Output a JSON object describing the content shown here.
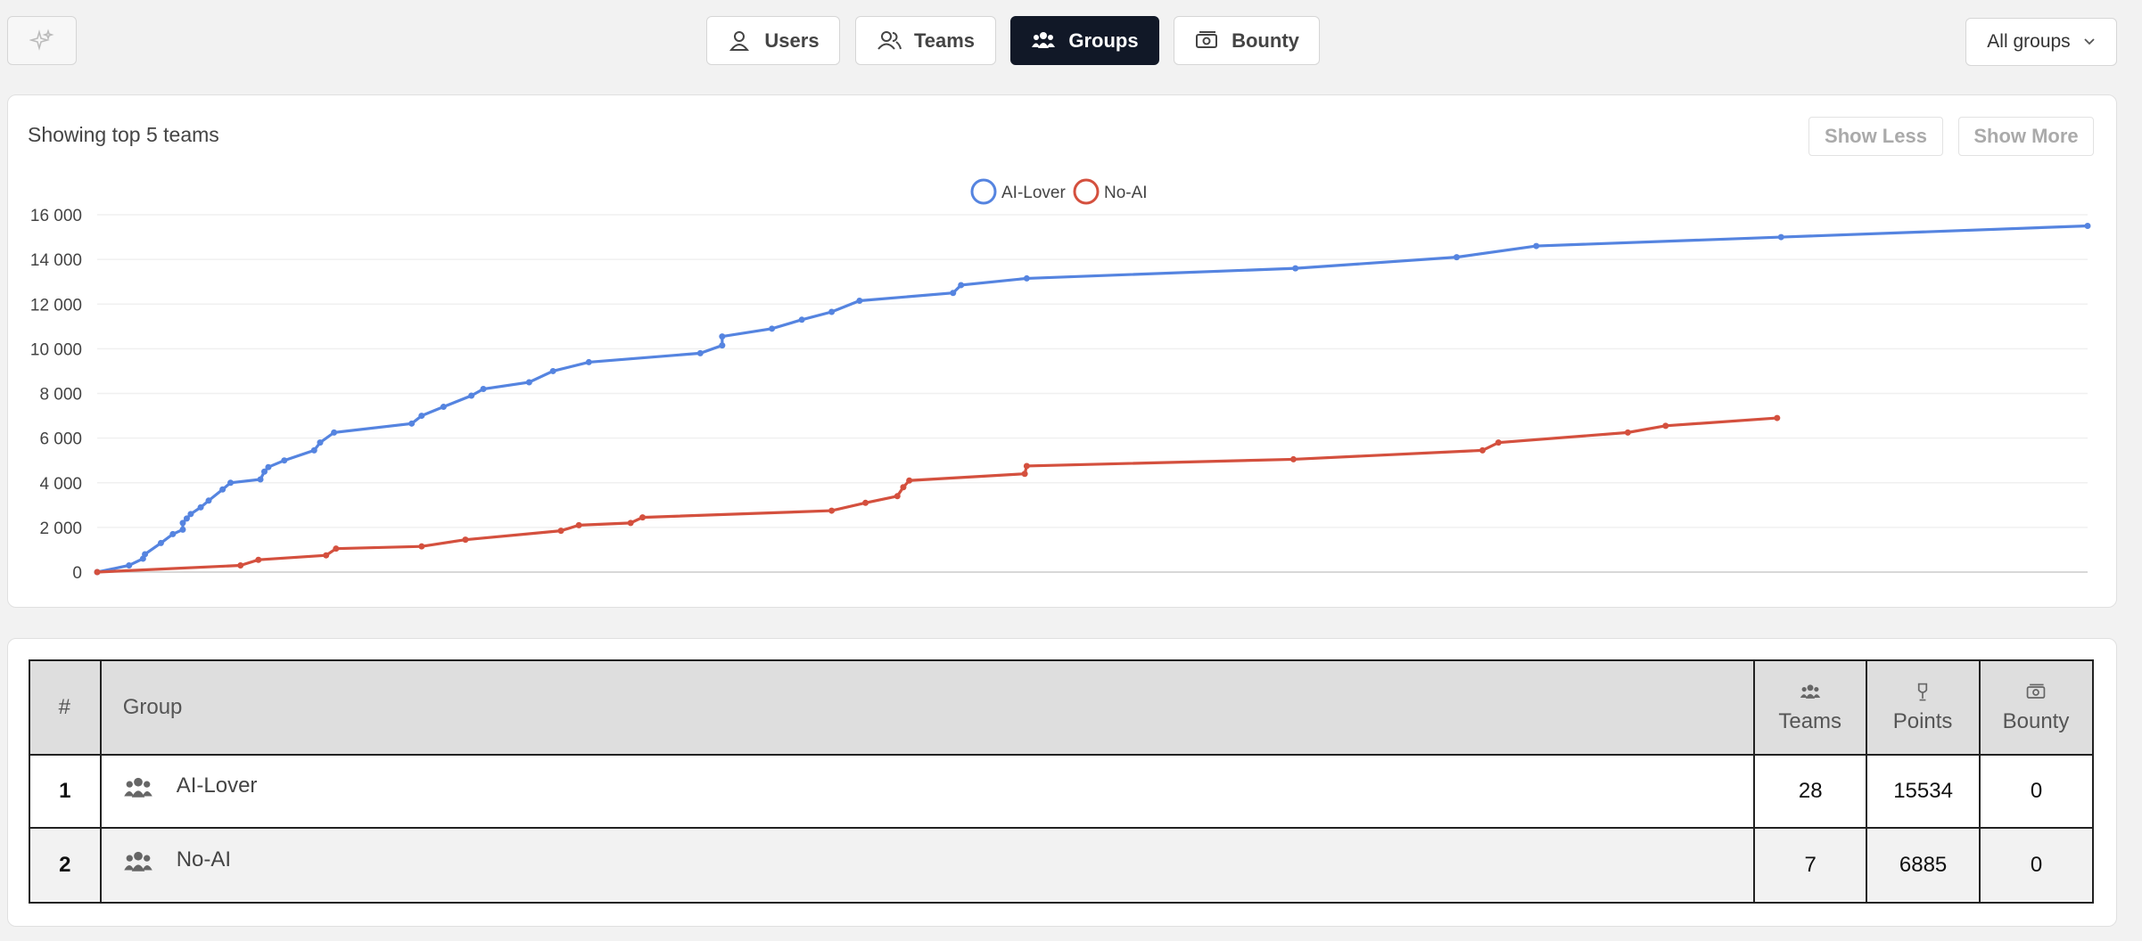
{
  "toolbar": {
    "tabs": [
      "Users",
      "Teams",
      "Groups",
      "Bounty"
    ],
    "active_tab": "Groups",
    "filter": "All groups"
  },
  "chart_header": {
    "caption": "Showing top 5 teams",
    "buttons": [
      "Show Less",
      "Show More"
    ]
  },
  "chart_data": {
    "type": "line",
    "legend": "top",
    "grid": true,
    "xlim": [
      0,
      100
    ],
    "ylim": [
      0,
      16000
    ],
    "yticks": [
      0,
      {
        "value": 2000,
        "label": "2 000"
      },
      {
        "value": 4000,
        "label": "4 000"
      },
      {
        "value": 6000,
        "label": "6 000"
      },
      {
        "value": 8000,
        "label": "8 000"
      },
      {
        "value": 10000,
        "label": "10 000"
      },
      {
        "value": 12000,
        "label": "12 000"
      },
      {
        "value": 14000,
        "label": "14 000"
      },
      {
        "value": 16000,
        "label": "16 000"
      }
    ],
    "series": [
      {
        "name": "AI-Lover",
        "color": "#5584e0",
        "x": [
          0,
          1.6,
          2.3,
          2.4,
          3.2,
          3.8,
          4.3,
          4.3,
          4.5,
          4.7,
          5.2,
          5.6,
          6.3,
          6.7,
          8.2,
          8.4,
          8.6,
          9.4,
          10.9,
          11.2,
          11.9,
          15.8,
          16.3,
          17.4,
          18.8,
          19.4,
          21.7,
          22.9,
          24.7,
          30.3,
          31.4,
          31.4,
          33.9,
          35.4,
          36.9,
          38.3,
          43.0,
          43.4,
          46.7,
          60.2,
          68.3,
          72.3,
          84.6,
          100
        ],
        "values": [
          0,
          300,
          600,
          800,
          1300,
          1700,
          1900,
          2200,
          2400,
          2600,
          2900,
          3200,
          3700,
          4000,
          4150,
          4500,
          4700,
          5000,
          5450,
          5800,
          6250,
          6650,
          7000,
          7400,
          7900,
          8200,
          8500,
          9000,
          9400,
          9800,
          10150,
          10550,
          10900,
          11300,
          11650,
          12150,
          12500,
          12850,
          13150,
          13600,
          14100,
          14600,
          15000,
          15500
        ]
      },
      {
        "name": "No-AI",
        "color": "#d4503e",
        "x": [
          0,
          7.2,
          8.1,
          11.5,
          12.0,
          16.3,
          18.5,
          23.3,
          24.2,
          26.8,
          27.4,
          36.9,
          38.6,
          40.2,
          40.5,
          40.8,
          46.6,
          46.7,
          60.1,
          69.6,
          70.4,
          76.9,
          78.8,
          84.4
        ],
        "values": [
          0,
          300,
          550,
          750,
          1050,
          1150,
          1450,
          1850,
          2100,
          2200,
          2450,
          2750,
          3100,
          3400,
          3800,
          4100,
          4400,
          4750,
          5050,
          5450,
          5800,
          6250,
          6550,
          6900
        ]
      }
    ]
  },
  "table": {
    "columns": [
      "#",
      "Group",
      "Teams",
      "Points",
      "Bounty"
    ],
    "rows": [
      [
        1,
        "AI-Lover",
        28,
        15534,
        0
      ],
      [
        2,
        "No-AI",
        7,
        6885,
        0
      ]
    ]
  }
}
